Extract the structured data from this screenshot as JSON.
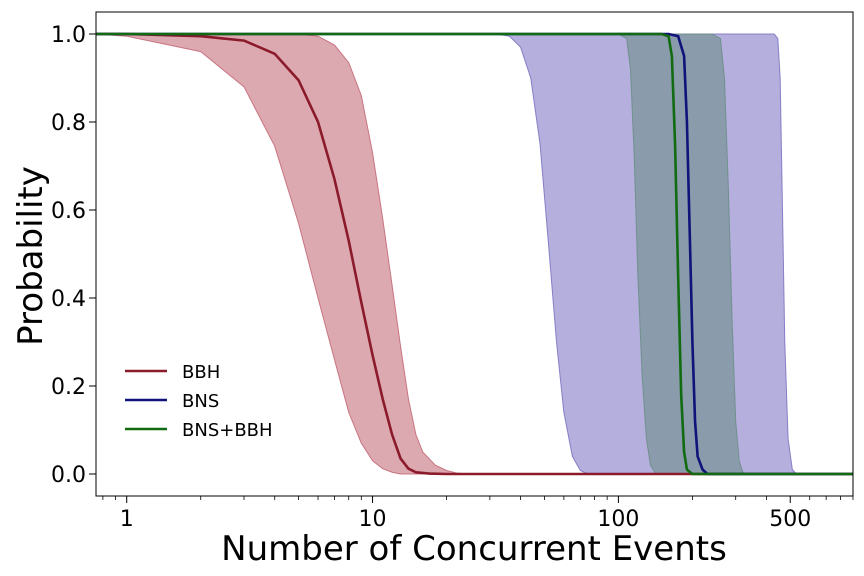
{
  "chart_data": {
    "type": "line",
    "xlabel": "Number of Concurrent Events",
    "ylabel": "Probability",
    "xscale": "log",
    "xlim": [
      0.75,
      900
    ],
    "ylim": [
      -0.05,
      1.05
    ],
    "x_ticks": [
      1,
      10,
      100,
      500
    ],
    "y_ticks": [
      0.0,
      0.2,
      0.4,
      0.6,
      0.8,
      1.0
    ],
    "grid": false,
    "legend_position": "lower-left",
    "series": [
      {
        "name": "BBH",
        "color": "#8b1a2b",
        "band_color": "#c46a78",
        "line": [
          [
            0.75,
            1.0
          ],
          [
            1,
            1.0
          ],
          [
            2,
            0.995
          ],
          [
            3,
            0.985
          ],
          [
            4,
            0.955
          ],
          [
            5,
            0.895
          ],
          [
            6,
            0.8
          ],
          [
            7,
            0.67
          ],
          [
            8,
            0.53
          ],
          [
            9,
            0.39
          ],
          [
            10,
            0.27
          ],
          [
            11,
            0.17
          ],
          [
            12,
            0.09
          ],
          [
            13,
            0.035
          ],
          [
            14,
            0.012
          ],
          [
            15,
            0.004
          ],
          [
            17,
            0.001
          ],
          [
            20,
            0.0
          ],
          [
            900,
            0.0
          ]
        ],
        "upper": [
          [
            0.75,
            1.0
          ],
          [
            3,
            1.0
          ],
          [
            5,
            1.0
          ],
          [
            6,
            0.995
          ],
          [
            7,
            0.975
          ],
          [
            8,
            0.935
          ],
          [
            9,
            0.86
          ],
          [
            10,
            0.73
          ],
          [
            11,
            0.58
          ],
          [
            12,
            0.43
          ],
          [
            13,
            0.29
          ],
          [
            14,
            0.17
          ],
          [
            15,
            0.09
          ],
          [
            16,
            0.05
          ],
          [
            18,
            0.02
          ],
          [
            20,
            0.008
          ],
          [
            22,
            0.002
          ],
          [
            25,
            0.0
          ],
          [
            900,
            0.0
          ]
        ],
        "lower": [
          [
            0.75,
            1.0
          ],
          [
            1,
            0.995
          ],
          [
            2,
            0.96
          ],
          [
            3,
            0.88
          ],
          [
            4,
            0.745
          ],
          [
            5,
            0.57
          ],
          [
            6,
            0.4
          ],
          [
            7,
            0.26
          ],
          [
            8,
            0.14
          ],
          [
            9,
            0.07
          ],
          [
            10,
            0.03
          ],
          [
            11,
            0.012
          ],
          [
            12,
            0.004
          ],
          [
            13,
            0.0
          ],
          [
            900,
            0.0
          ]
        ]
      },
      {
        "name": "BNS",
        "color": "#11127a",
        "band_color": "#7d75c2",
        "line": [
          [
            0.75,
            1.0
          ],
          [
            160,
            1.0
          ],
          [
            175,
            0.995
          ],
          [
            185,
            0.95
          ],
          [
            190,
            0.8
          ],
          [
            195,
            0.55
          ],
          [
            200,
            0.3
          ],
          [
            205,
            0.12
          ],
          [
            210,
            0.04
          ],
          [
            220,
            0.01
          ],
          [
            230,
            0.0
          ],
          [
            900,
            0.0
          ]
        ],
        "upper": [
          [
            0.75,
            1.0
          ],
          [
            430,
            1.0
          ],
          [
            445,
            0.99
          ],
          [
            455,
            0.9
          ],
          [
            465,
            0.6
          ],
          [
            475,
            0.3
          ],
          [
            490,
            0.08
          ],
          [
            510,
            0.01
          ],
          [
            530,
            0.0
          ],
          [
            900,
            0.0
          ]
        ],
        "lower": [
          [
            0.75,
            1.0
          ],
          [
            32,
            1.0
          ],
          [
            36,
            0.995
          ],
          [
            40,
            0.97
          ],
          [
            44,
            0.9
          ],
          [
            48,
            0.75
          ],
          [
            52,
            0.52
          ],
          [
            56,
            0.3
          ],
          [
            60,
            0.14
          ],
          [
            65,
            0.04
          ],
          [
            70,
            0.008
          ],
          [
            75,
            0.0
          ],
          [
            900,
            0.0
          ]
        ]
      },
      {
        "name": "BNS+BBH",
        "color": "#116b11",
        "band_color": "#6d8e8a",
        "line": [
          [
            0.75,
            1.0
          ],
          [
            150,
            1.0
          ],
          [
            160,
            0.995
          ],
          [
            165,
            0.95
          ],
          [
            170,
            0.75
          ],
          [
            175,
            0.45
          ],
          [
            180,
            0.18
          ],
          [
            185,
            0.05
          ],
          [
            190,
            0.01
          ],
          [
            200,
            0.0
          ],
          [
            900,
            0.0
          ]
        ],
        "upper": [
          [
            0.75,
            1.0
          ],
          [
            240,
            1.0
          ],
          [
            260,
            0.99
          ],
          [
            270,
            0.9
          ],
          [
            280,
            0.65
          ],
          [
            290,
            0.35
          ],
          [
            300,
            0.12
          ],
          [
            310,
            0.03
          ],
          [
            320,
            0.005
          ],
          [
            330,
            0.0
          ],
          [
            900,
            0.0
          ]
        ],
        "lower": [
          [
            0.75,
            1.0
          ],
          [
            100,
            1.0
          ],
          [
            108,
            0.99
          ],
          [
            112,
            0.92
          ],
          [
            116,
            0.72
          ],
          [
            120,
            0.45
          ],
          [
            125,
            0.22
          ],
          [
            130,
            0.08
          ],
          [
            135,
            0.02
          ],
          [
            142,
            0.0
          ],
          [
            900,
            0.0
          ]
        ]
      }
    ]
  }
}
